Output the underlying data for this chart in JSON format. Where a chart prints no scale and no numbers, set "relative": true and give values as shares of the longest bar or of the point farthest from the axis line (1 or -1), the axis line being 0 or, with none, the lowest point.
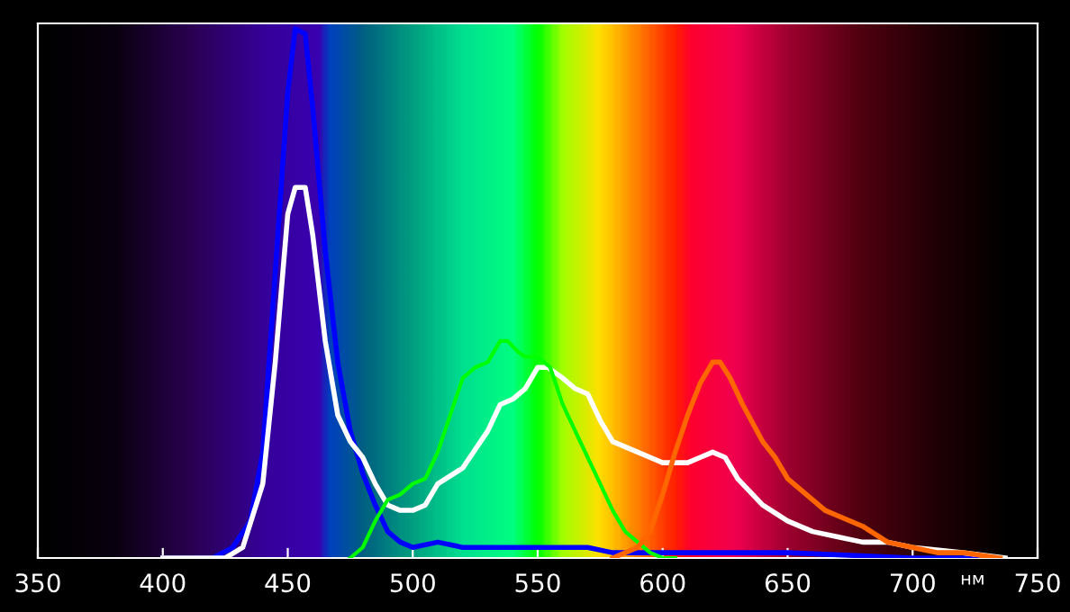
{
  "chart_data": {
    "type": "line",
    "xlabel": "нм",
    "relative": true,
    "xlim": [
      350,
      750
    ],
    "xticks": [
      350,
      400,
      450,
      500,
      550,
      600,
      650,
      700,
      750
    ],
    "grid": false,
    "legend": false,
    "marker": "none",
    "line_style": "solid",
    "series": [
      {
        "color": "#0000ff",
        "x": [
          400,
          420,
          428,
          435,
          440,
          445,
          450,
          453,
          457,
          460,
          465,
          470,
          475,
          480,
          485,
          490,
          495,
          500,
          510,
          520,
          530,
          550,
          570,
          580,
          600,
          650,
          700,
          730
        ],
        "values": [
          0,
          0.0,
          0.02,
          0.07,
          0.2,
          0.54,
          0.88,
          1,
          0.99,
          0.85,
          0.58,
          0.37,
          0.24,
          0.16,
          0.1,
          0.05,
          0.03,
          0.02,
          0.03,
          0.02,
          0.02,
          0.02,
          0.02,
          0.01,
          0.01,
          0.01,
          0.0,
          0
        ]
      },
      {
        "color": "#ffffff",
        "x": [
          400,
          425,
          432,
          440,
          445,
          450,
          453,
          457,
          460,
          465,
          470,
          475,
          480,
          485,
          490,
          495,
          500,
          505,
          510,
          520,
          530,
          535,
          540,
          545,
          550,
          554,
          560,
          565,
          570,
          575,
          580,
          590,
          600,
          605,
          610,
          615,
          620,
          625,
          630,
          640,
          650,
          660,
          670,
          680,
          690,
          700,
          720,
          737
        ],
        "values": [
          0,
          0.0,
          0.02,
          0.14,
          0.37,
          0.65,
          0.7,
          0.7,
          0.61,
          0.41,
          0.27,
          0.22,
          0.19,
          0.14,
          0.1,
          0.09,
          0.09,
          0.1,
          0.14,
          0.17,
          0.24,
          0.29,
          0.3,
          0.32,
          0.36,
          0.36,
          0.34,
          0.32,
          0.31,
          0.26,
          0.22,
          0.2,
          0.18,
          0.18,
          0.18,
          0.19,
          0.2,
          0.19,
          0.15,
          0.1,
          0.07,
          0.05,
          0.04,
          0.03,
          0.03,
          0.02,
          0.01,
          0
        ]
      },
      {
        "color": "#00ff00",
        "x": [
          475,
          480,
          485,
          490,
          495,
          500,
          505,
          510,
          515,
          520,
          525,
          530,
          535,
          538,
          542,
          545,
          550,
          555,
          560,
          565,
          570,
          575,
          580,
          585,
          590,
          595,
          600,
          605
        ],
        "values": [
          0,
          0.02,
          0.07,
          0.11,
          0.12,
          0.14,
          0.15,
          0.2,
          0.27,
          0.34,
          0.36,
          0.37,
          0.41,
          0.41,
          0.39,
          0.38,
          0.38,
          0.36,
          0.29,
          0.24,
          0.19,
          0.14,
          0.09,
          0.05,
          0.03,
          0.01,
          0.0,
          0
        ]
      },
      {
        "color": "#ff6600",
        "x": [
          580,
          590,
          595,
          600,
          605,
          610,
          615,
          620,
          623,
          627,
          632,
          640,
          645,
          650,
          655,
          660,
          665,
          670,
          680,
          690,
          700,
          710,
          720,
          735
        ],
        "values": [
          0,
          0.02,
          0.05,
          0.12,
          0.2,
          0.27,
          0.33,
          0.37,
          0.37,
          0.34,
          0.29,
          0.22,
          0.19,
          0.15,
          0.13,
          0.11,
          0.09,
          0.08,
          0.06,
          0.03,
          0.02,
          0.01,
          0.01,
          0
        ]
      }
    ]
  }
}
